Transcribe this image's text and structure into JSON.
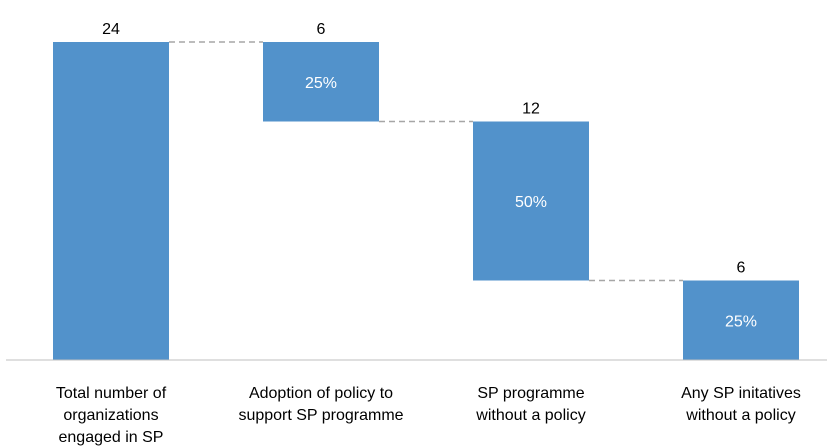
{
  "chart_data": {
    "type": "bar",
    "subtype": "waterfall",
    "categories": [
      [
        "Total number of",
        "organizations",
        "engaged in SP"
      ],
      [
        "Adoption of policy to",
        "support SP programme"
      ],
      [
        "SP programme",
        "without a policy"
      ],
      [
        "Any SP initatives",
        "without a policy"
      ]
    ],
    "values": [
      24,
      6,
      12,
      6
    ],
    "value_labels": [
      "24",
      "6",
      "12",
      "6"
    ],
    "percent_labels": [
      "",
      "25%",
      "50%",
      "25%"
    ],
    "ylim": [
      0,
      24
    ],
    "grid": false,
    "connectors": true,
    "colors": {
      "bar": "#5292CB",
      "connector": "#A6A6A6",
      "axis": "#BFBFBF",
      "last_value_label": "#7F7F7F"
    }
  }
}
